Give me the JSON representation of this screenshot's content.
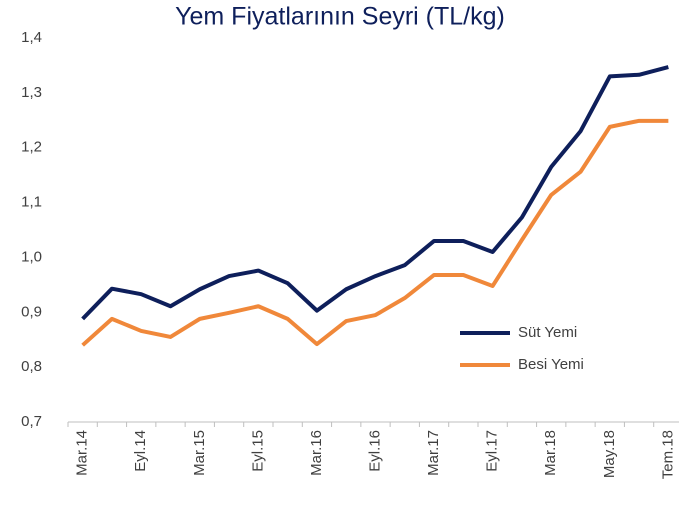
{
  "chart_data": {
    "type": "line",
    "title": "Yem Fiyatlarının Seyri (TL/kg)",
    "categories": [
      "Mar.14",
      null,
      "Eyl.14",
      null,
      "Mar.15",
      null,
      "Eyl.15",
      null,
      "Mar.16",
      null,
      "Eyl.16",
      null,
      "Mar.17",
      null,
      "Eyl.17",
      null,
      "Mar.18",
      null,
      "May.18",
      null,
      "Tem.18"
    ],
    "series": [
      {
        "name": "Süt Yemi",
        "color": "#0e1f5b",
        "values": [
          0.888,
          0.943,
          0.933,
          0.911,
          0.942,
          0.966,
          0.976,
          0.953,
          0.903,
          0.942,
          0.966,
          0.986,
          1.03,
          1.03,
          1.01,
          1.073,
          1.165,
          1.23,
          1.33,
          1.333,
          1.347
        ]
      },
      {
        "name": "Besi Yemi",
        "color": "#f0883a",
        "values": [
          0.84,
          0.888,
          0.866,
          0.855,
          0.888,
          0.899,
          0.911,
          0.888,
          0.842,
          0.884,
          0.895,
          0.926,
          0.968,
          0.968,
          0.948,
          1.032,
          1.114,
          1.156,
          1.238,
          1.249,
          1.249
        ]
      }
    ],
    "ylim": [
      0.7,
      1.4
    ],
    "yticks": [
      {
        "value": 0.7,
        "label": "0,7"
      },
      {
        "value": 0.8,
        "label": "0,8"
      },
      {
        "value": 0.9,
        "label": "0,9"
      },
      {
        "value": 1.0,
        "label": "1,0"
      },
      {
        "value": 1.1,
        "label": "1,1"
      },
      {
        "value": 1.2,
        "label": "1,2"
      },
      {
        "value": 1.3,
        "label": "1,3"
      },
      {
        "value": 1.4,
        "label": "1,4"
      }
    ],
    "grid": false,
    "legend": "right"
  }
}
